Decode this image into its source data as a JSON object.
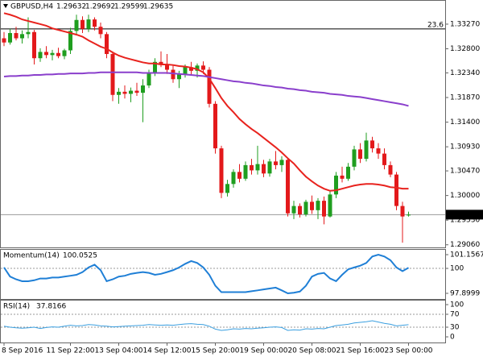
{
  "chart_data": [
    {
      "type": "candlestick",
      "symbol": "GBPUSD,H4",
      "categories": [
        "8 Sep 2016",
        null,
        null,
        null,
        null,
        null,
        null,
        null,
        null,
        null,
        null,
        "11 Sep 22:00",
        null,
        null,
        null,
        null,
        null,
        null,
        null,
        "13 Sep 04:00",
        null,
        null,
        null,
        null,
        null,
        null,
        null,
        "14 Sep 12:00",
        null,
        null,
        null,
        null,
        null,
        null,
        null,
        "15 Sep 20:00",
        null,
        null,
        null,
        null,
        null,
        null,
        null,
        "19 Sep 00:00",
        null,
        null,
        null,
        null,
        null,
        null,
        null,
        "20 Sep 08:00",
        null,
        null,
        null,
        null,
        null,
        null,
        null,
        "21 Sep 16:00",
        null,
        null,
        null,
        null,
        null,
        null,
        null,
        "23 Sep 00:00"
      ],
      "open": [
        1.33,
        1.3292,
        1.331,
        1.33,
        1.3308,
        1.3312,
        1.3262,
        1.3274,
        1.3268,
        1.3272,
        1.3266,
        1.3277,
        1.3314,
        1.3335,
        1.3318,
        1.3336,
        1.3322,
        1.3308,
        1.327,
        1.3192,
        1.3198,
        1.3194,
        1.32,
        1.3196,
        1.321,
        1.3235,
        1.3255,
        1.325,
        1.324,
        1.3222,
        1.3232,
        1.3245,
        1.3238,
        1.3248,
        1.324,
        1.3175,
        1.309,
        1.3005,
        1.3022,
        1.3045,
        1.3032,
        1.3058,
        1.3048,
        1.306,
        1.3042,
        1.3065,
        1.3058,
        1.3068,
        1.2966,
        1.298,
        1.2964,
        1.2988,
        1.2972,
        1.299,
        1.296,
        1.3002,
        1.3038,
        1.3032,
        1.3055,
        1.3088,
        1.307,
        1.3105,
        1.309,
        1.308,
        1.3058,
        1.304,
        1.298,
        1.29632
      ],
      "high": [
        1.3312,
        1.3318,
        1.3322,
        1.3315,
        1.334,
        1.3316,
        1.3281,
        1.3285,
        1.3278,
        1.3282,
        1.328,
        1.332,
        1.3345,
        1.3342,
        1.3345,
        1.334,
        1.333,
        1.3312,
        1.3275,
        1.3205,
        1.321,
        1.3206,
        1.3215,
        1.3222,
        1.324,
        1.3262,
        1.3275,
        1.327,
        1.325,
        1.3238,
        1.325,
        1.3255,
        1.3252,
        1.3256,
        1.3245,
        1.318,
        1.3095,
        1.303,
        1.305,
        1.306,
        1.3065,
        1.307,
        1.3095,
        1.3068,
        1.307,
        1.3085,
        1.3075,
        1.3072,
        1.299,
        1.2985,
        1.2992,
        1.3,
        1.2995,
        1.2998,
        1.301,
        1.3045,
        1.3055,
        1.3062,
        1.3095,
        1.31,
        1.312,
        1.3112,
        1.31,
        1.309,
        1.3065,
        1.3045,
        1.2988,
        1.29692
      ],
      "low": [
        1.3285,
        1.3288,
        1.3296,
        1.329,
        1.33,
        1.325,
        1.3255,
        1.3262,
        1.3258,
        1.3262,
        1.326,
        1.327,
        1.3306,
        1.331,
        1.3312,
        1.3315,
        1.33,
        1.3262,
        1.318,
        1.3175,
        1.3185,
        1.3178,
        1.319,
        1.314,
        1.3205,
        1.3228,
        1.3245,
        1.3232,
        1.3215,
        1.3205,
        1.3225,
        1.323,
        1.3225,
        1.3232,
        1.3168,
        1.308,
        1.2995,
        1.2998,
        1.3015,
        1.3025,
        1.3028,
        1.304,
        1.304,
        1.3035,
        1.3036,
        1.305,
        1.3045,
        1.296,
        1.2955,
        1.2958,
        1.296,
        1.2965,
        1.2955,
        1.2945,
        1.2958,
        1.2995,
        1.3025,
        1.3028,
        1.3048,
        1.3062,
        1.3065,
        1.3082,
        1.307,
        1.305,
        1.3035,
        1.2972,
        1.291,
        1.29599
      ],
      "close": [
        1.3292,
        1.331,
        1.33,
        1.3308,
        1.3312,
        1.3262,
        1.3274,
        1.3268,
        1.3272,
        1.3266,
        1.3277,
        1.3314,
        1.3335,
        1.3318,
        1.3336,
        1.3322,
        1.3308,
        1.327,
        1.3192,
        1.3198,
        1.3194,
        1.32,
        1.3196,
        1.321,
        1.3235,
        1.3255,
        1.325,
        1.324,
        1.3222,
        1.3232,
        1.3245,
        1.3238,
        1.3248,
        1.324,
        1.3175,
        1.309,
        1.3005,
        1.3022,
        1.3045,
        1.3032,
        1.3058,
        1.3048,
        1.306,
        1.3042,
        1.3065,
        1.3058,
        1.3068,
        1.2966,
        1.298,
        1.2964,
        1.2988,
        1.2972,
        1.299,
        1.296,
        1.3002,
        1.3038,
        1.3032,
        1.3055,
        1.3088,
        1.307,
        1.3105,
        1.309,
        1.308,
        1.3058,
        1.304,
        1.298,
        1.296,
        1.29635
      ],
      "up_color": "#1f9e1f",
      "down_color": "#e3191b",
      "lines": [
        {
          "color": "#e8231e",
          "values": [
            1.3348,
            1.3345,
            1.3341,
            1.3336,
            1.3333,
            1.333,
            1.3327,
            1.3324,
            1.3319,
            1.3316,
            1.3313,
            1.331,
            1.3307,
            1.3303,
            1.3296,
            1.329,
            1.3284,
            1.328,
            1.3273,
            1.3267,
            1.3263,
            1.326,
            1.3257,
            1.3254,
            1.3252,
            1.3252,
            1.325,
            1.325,
            1.3249,
            1.3247,
            1.3246,
            1.3244,
            1.3241,
            1.3235,
            1.3223,
            1.3205,
            1.3186,
            1.3171,
            1.3159,
            1.3146,
            1.3136,
            1.3127,
            1.3119,
            1.311,
            1.3101,
            1.3092,
            1.3082,
            1.3071,
            1.3061,
            1.3048,
            1.3036,
            1.3027,
            1.3019,
            1.3013,
            1.3009,
            1.301,
            1.3013,
            1.3016,
            1.3019,
            1.3021,
            1.3022,
            1.3022,
            1.3021,
            1.3019,
            1.3016,
            1.3015,
            1.3013,
            1.3013
          ]
        },
        {
          "color": "#8a3fcc",
          "values": [
            1.3227,
            1.3228,
            1.3228,
            1.3229,
            1.3229,
            1.323,
            1.323,
            1.3231,
            1.3231,
            1.3232,
            1.3232,
            1.3233,
            1.3233,
            1.3233,
            1.3234,
            1.3234,
            1.3235,
            1.3235,
            1.3235,
            1.3235,
            1.3235,
            1.3235,
            1.3235,
            1.3234,
            1.3234,
            1.3234,
            1.3234,
            1.3234,
            1.3233,
            1.3232,
            1.3231,
            1.323,
            1.3229,
            1.3228,
            1.3226,
            1.3224,
            1.3222,
            1.322,
            1.3218,
            1.3217,
            1.3215,
            1.3214,
            1.3212,
            1.321,
            1.3209,
            1.3207,
            1.3206,
            1.3204,
            1.3203,
            1.3201,
            1.32,
            1.3198,
            1.3197,
            1.3196,
            1.3194,
            1.3193,
            1.3192,
            1.319,
            1.3189,
            1.3188,
            1.3186,
            1.3184,
            1.3182,
            1.318,
            1.3178,
            1.3176,
            1.3174,
            1.3171
          ]
        }
      ],
      "level": {
        "label": "23.6",
        "value": 1.3318,
        "color": "#000000"
      },
      "price_color": "#999999",
      "ylim": [
        1.2901,
        1.337
      ],
      "yticks": [
        {
          "value": 1.3327,
          "label": "1.33270"
        },
        {
          "value": 1.328,
          "label": "1.32800"
        },
        {
          "value": 1.3234,
          "label": "1.32340"
        },
        {
          "value": 1.3187,
          "label": "1.31870"
        },
        {
          "value": 1.314,
          "label": "1.31400"
        },
        {
          "value": 1.3093,
          "label": "1.30930"
        },
        {
          "value": 1.3047,
          "label": "1.30470"
        },
        {
          "value": 1.3,
          "label": "1.30000"
        },
        {
          "value": 1.2953,
          "label": "1.29530"
        },
        {
          "value": 1.2906,
          "label": "1.29060"
        }
      ]
    },
    {
      "type": "line",
      "title": "Momentum(14)",
      "color": "#1f7fd6",
      "values": [
        100.08,
        99.31,
        99.08,
        98.92,
        98.92,
        99.0,
        99.15,
        99.15,
        99.23,
        99.23,
        99.31,
        99.38,
        99.46,
        99.69,
        100.08,
        100.31,
        99.85,
        98.92,
        99.08,
        99.31,
        99.38,
        99.54,
        99.62,
        99.69,
        99.62,
        99.46,
        99.54,
        99.69,
        99.85,
        100.08,
        100.38,
        100.62,
        100.46,
        100.08,
        99.46,
        98.54,
        98.0,
        98.0,
        98.0,
        98.0,
        98.0,
        98.08,
        98.15,
        98.23,
        98.31,
        98.38,
        98.15,
        97.8999,
        97.95,
        98.05,
        98.54,
        99.31,
        99.54,
        99.62,
        99.15,
        98.92,
        99.46,
        99.92,
        100.08,
        100.23,
        100.46,
        101.0,
        101.1567,
        101.0,
        100.69,
        100.08,
        99.77,
        100.0525
      ],
      "levels": [
        100
      ],
      "ylim": [
        97.8999,
        101.1567
      ],
      "yticks": [
        101.1567,
        100,
        97.8999
      ]
    },
    {
      "type": "line",
      "title": "RSI(14)",
      "color": "#3a9fe0",
      "values": [
        33,
        30,
        28,
        27,
        28,
        30,
        26,
        29,
        31,
        30,
        33,
        36,
        34,
        35,
        38,
        37,
        34,
        33,
        31,
        32,
        33,
        34,
        35,
        36,
        38,
        37,
        36,
        37,
        36,
        38,
        40,
        41,
        39,
        38,
        33,
        24,
        20,
        22,
        25,
        24,
        26,
        25,
        27,
        28,
        30,
        31,
        29,
        20,
        22,
        21,
        25,
        24,
        26,
        25,
        30,
        35,
        37,
        39,
        43,
        45,
        47,
        50,
        46,
        42,
        39,
        34,
        36,
        37.8166
      ],
      "levels": [
        70,
        30
      ],
      "ylim": [
        0,
        100
      ],
      "yticks": [
        100,
        70,
        30,
        0
      ]
    }
  ]
}
